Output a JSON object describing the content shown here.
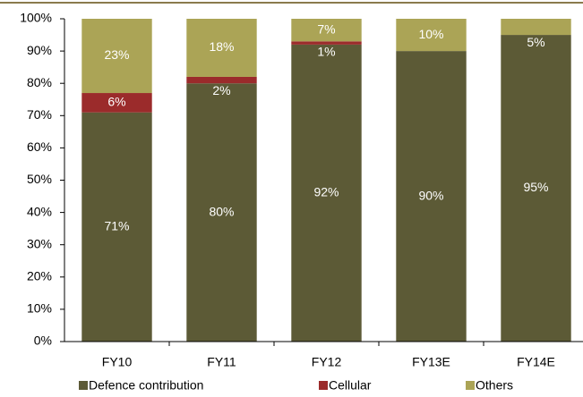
{
  "chart_data": {
    "type": "stacked_bar",
    "categories": [
      "FY10",
      "FY11",
      "FY12",
      "FY13E",
      "FY14E"
    ],
    "series": [
      {
        "name": "Defence contribution",
        "color": "#5c5a36",
        "values": [
          71,
          80,
          92,
          90,
          95
        ],
        "value_labels": [
          "71%",
          "80%",
          "92%",
          "90%",
          "95%"
        ]
      },
      {
        "name": "Cellular",
        "color": "#9b2b2b",
        "values": [
          6,
          2,
          1,
          0,
          0
        ],
        "value_labels": [
          "6%",
          "2%",
          "1%",
          null,
          null
        ]
      },
      {
        "name": "Others",
        "color": "#aba456",
        "values": [
          23,
          18,
          7,
          10,
          5
        ],
        "value_labels": [
          "23%",
          "18%",
          "7%",
          "10%",
          "5%"
        ]
      }
    ],
    "ylim": [
      0,
      100
    ],
    "yticks": [
      {
        "value": 0,
        "label": "0%"
      },
      {
        "value": 10,
        "label": "10%"
      },
      {
        "value": 20,
        "label": "20%"
      },
      {
        "value": 30,
        "label": "30%"
      },
      {
        "value": 40,
        "label": "40%"
      },
      {
        "value": 50,
        "label": "50%"
      },
      {
        "value": 60,
        "label": "60%"
      },
      {
        "value": 70,
        "label": "70%"
      },
      {
        "value": 80,
        "label": "80%"
      },
      {
        "value": 90,
        "label": "90%"
      },
      {
        "value": 100,
        "label": "100%"
      }
    ],
    "grid": false,
    "legend": "bottom"
  }
}
